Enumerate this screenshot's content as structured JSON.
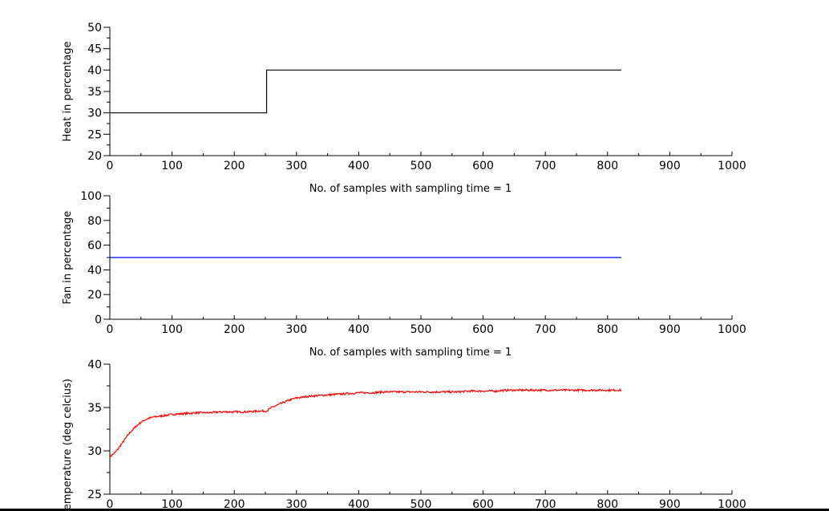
{
  "chart_data": [
    {
      "type": "line",
      "title": "",
      "xlabel": "No. of samples with sampling time = 1",
      "ylabel": "Heat in percentage",
      "xlim": [
        0,
        1000
      ],
      "ylim": [
        20,
        50
      ],
      "xticks": [
        0,
        100,
        200,
        300,
        400,
        500,
        600,
        700,
        800,
        900,
        1000
      ],
      "yticks": [
        20,
        25,
        30,
        35,
        40,
        45,
        50
      ],
      "step": true,
      "series": [
        {
          "color": "#000000",
          "x": [
            0,
            252,
            252,
            822
          ],
          "y": [
            30,
            30,
            40,
            40
          ]
        }
      ]
    },
    {
      "type": "line",
      "title": "",
      "xlabel": "No. of samples with sampling time = 1",
      "ylabel": "Fan in percentage",
      "xlim": [
        0,
        1000
      ],
      "ylim": [
        0,
        100
      ],
      "xticks": [
        0,
        100,
        200,
        300,
        400,
        500,
        600,
        700,
        800,
        900,
        1000
      ],
      "yticks": [
        0,
        20,
        40,
        60,
        80,
        100
      ],
      "series": [
        {
          "color": "#0000ff",
          "x": [
            0,
            822
          ],
          "y": [
            50,
            50
          ]
        }
      ]
    },
    {
      "type": "line",
      "title": "",
      "xlabel": "",
      "ylabel": "Temperature (deg celcius)",
      "xlim": [
        0,
        1000
      ],
      "ylim": [
        25,
        40
      ],
      "xticks": [
        0,
        100,
        200,
        300,
        400,
        500,
        600,
        700,
        800,
        900,
        1000
      ],
      "yticks": [
        25,
        30,
        35,
        40
      ],
      "noisy": true,
      "series": [
        {
          "color": "#ff0000",
          "x": [
            0,
            10,
            20,
            30,
            40,
            50,
            60,
            70,
            80,
            100,
            120,
            140,
            160,
            180,
            200,
            220,
            240,
            252,
            260,
            270,
            280,
            290,
            300,
            320,
            340,
            360,
            380,
            400,
            420,
            440,
            460,
            480,
            500,
            520,
            540,
            560,
            580,
            600,
            620,
            640,
            660,
            680,
            700,
            720,
            740,
            760,
            780,
            800,
            822
          ],
          "y": [
            29.3,
            29.9,
            30.9,
            31.9,
            32.7,
            33.3,
            33.7,
            33.9,
            34.0,
            34.2,
            34.3,
            34.4,
            34.4,
            34.5,
            34.5,
            34.5,
            34.6,
            34.6,
            35.0,
            35.3,
            35.6,
            35.9,
            36.1,
            36.3,
            36.4,
            36.5,
            36.6,
            36.7,
            36.7,
            36.8,
            36.8,
            36.8,
            36.8,
            36.8,
            36.8,
            36.8,
            36.9,
            36.9,
            36.9,
            37.0,
            37.0,
            37.0,
            37.0,
            37.0,
            37.0,
            37.0,
            37.0,
            37.0,
            37.0
          ]
        }
      ]
    }
  ]
}
